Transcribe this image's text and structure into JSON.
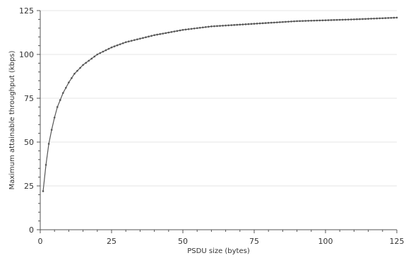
{
  "chart_data": {
    "type": "line",
    "xlabel": "PSDU size (bytes)",
    "ylabel": "Maximum attainable throughput (kbps)",
    "xlim": [
      0,
      125
    ],
    "ylim": [
      0,
      125
    ],
    "x_ticks": [
      0,
      25,
      50,
      75,
      100,
      125
    ],
    "y_ticks": [
      0,
      25,
      50,
      75,
      100,
      125
    ],
    "grid": "horizontal",
    "legend": "none",
    "colors": {
      "line": "#555555",
      "marker": "#555555",
      "grid": "#e6e6e6"
    },
    "series": [
      {
        "x": [
          1,
          2,
          3,
          4,
          5,
          6,
          7,
          8,
          10,
          12,
          15,
          20,
          25,
          30,
          40,
          50,
          60,
          75,
          90,
          100,
          110,
          125
        ],
        "y": [
          22,
          37,
          49,
          57,
          64,
          70,
          74,
          78,
          84,
          89,
          94,
          100,
          104,
          107,
          111,
          114,
          116,
          117.5,
          119,
          119.5,
          120,
          121
        ]
      }
    ]
  }
}
